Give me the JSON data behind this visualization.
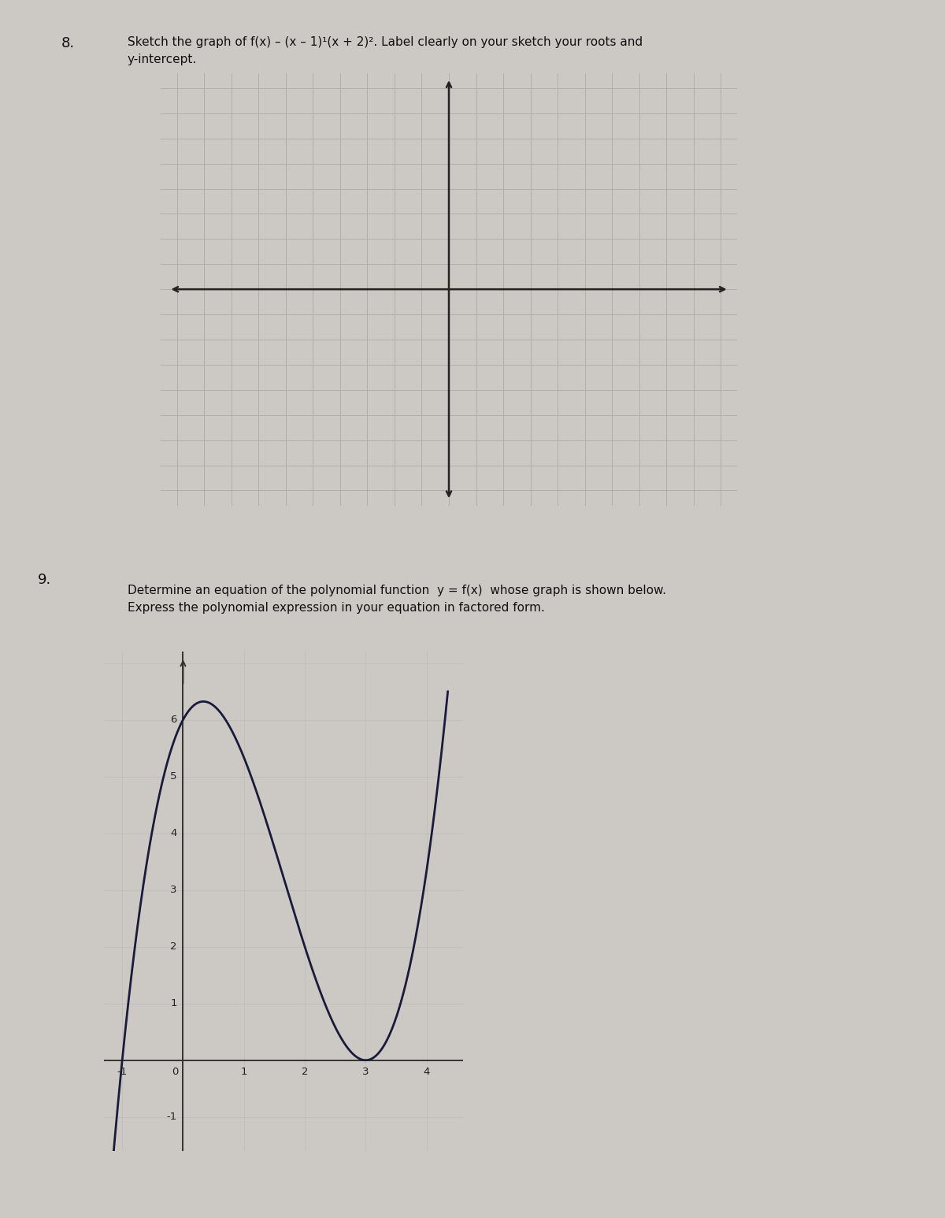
{
  "background_color": "#ccc9c4",
  "q8_number": "8.",
  "q8_text_line1": "Sketch the graph of f(x) – (x – 1)¹(x + 2)². Label clearly on your sketch your roots and",
  "q8_text_line2": "y-intercept.",
  "q9_number": "9.",
  "q9_text_line1": "Determine an equation of the polynomial function  y = f(x)  whose graph is shown below.",
  "q9_text_line2": "Express the polynomial expression in your equation in factored form.",
  "grid8_color": "#aaaaaa",
  "grid8_linewidth": 0.6,
  "axis8_color": "#222222",
  "axis8_linewidth": 1.8,
  "curve9_color": "#1a1a3a",
  "curve9_linewidth": 2.0,
  "axis9_color": "#333333",
  "axis9_linewidth": 1.4,
  "grid9_color": "#bbbbbb",
  "grid9_linewidth": 0.5,
  "plot9_xlim": [
    -1.3,
    4.6
  ],
  "plot9_ylim": [
    -1.6,
    7.2
  ],
  "plot9_xticks": [
    -1,
    0,
    1,
    2,
    3,
    4
  ],
  "plot9_yticks": [
    -1,
    1,
    2,
    3,
    4,
    5,
    6
  ],
  "poly9_a": 0.6667,
  "font_size_question_num": 13,
  "font_size_question_text": 11,
  "font_size_tick": 9.5
}
